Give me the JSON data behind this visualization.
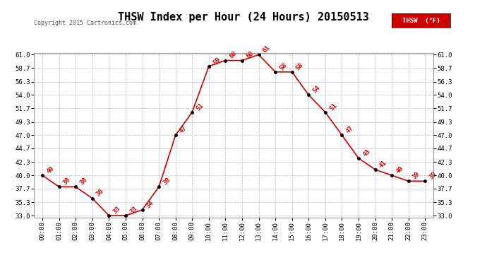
{
  "title": "THSW Index per Hour (24 Hours) 20150513",
  "copyright": "Copyright 2015 Cartronics.com",
  "legend_label": "THSW  (°F)",
  "x_labels": [
    "00:00",
    "01:00",
    "02:00",
    "03:00",
    "04:00",
    "05:00",
    "06:00",
    "07:00",
    "08:00",
    "09:00",
    "10:00",
    "11:00",
    "12:00",
    "13:00",
    "14:00",
    "15:00",
    "16:00",
    "17:00",
    "18:00",
    "19:00",
    "20:00",
    "21:00",
    "22:00",
    "23:00"
  ],
  "hours": [
    0,
    1,
    2,
    3,
    4,
    5,
    6,
    7,
    8,
    9,
    10,
    11,
    12,
    13,
    14,
    15,
    16,
    17,
    18,
    19,
    20,
    21,
    22,
    23
  ],
  "values": [
    40,
    38,
    38,
    36,
    33,
    33,
    34,
    38,
    47,
    51,
    59,
    60,
    60,
    61,
    58,
    58,
    54,
    51,
    47,
    43,
    41,
    40,
    39,
    39
  ],
  "ylim_min": 33.0,
  "ylim_max": 61.0,
  "yticks": [
    33.0,
    35.3,
    37.7,
    40.0,
    42.3,
    44.7,
    47.0,
    49.3,
    51.7,
    54.0,
    56.3,
    58.7,
    61.0
  ],
  "line_color": "#cc0000",
  "marker_color": "#000000",
  "bg_color": "#ffffff",
  "grid_color": "#bbbbbb",
  "title_fontsize": 11,
  "label_fontsize": 6.5,
  "annotation_fontsize": 6.5,
  "legend_bg": "#cc0000",
  "legend_text_color": "#ffffff"
}
